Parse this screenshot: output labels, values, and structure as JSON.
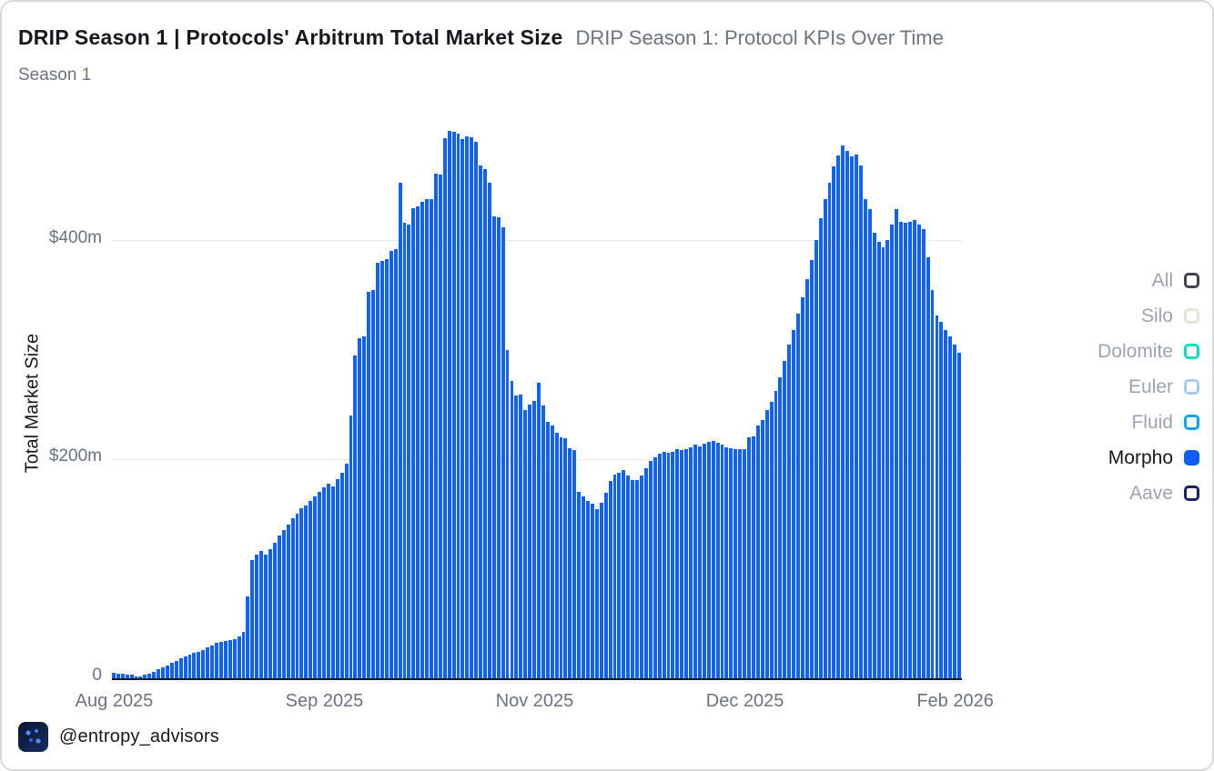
{
  "card": {
    "title_primary": "DRIP Season 1 | Protocols' Arbitrum Total Market Size",
    "title_secondary": "DRIP Season 1: Protocol KPIs Over Time",
    "subtitle": "Season 1",
    "watermark": "@entropy_advisors"
  },
  "legend": {
    "items": [
      {
        "label": "All",
        "color": "#3f4450",
        "filled": false,
        "active": false
      },
      {
        "label": "Silo",
        "color": "#e7e5cf",
        "filled": false,
        "active": false
      },
      {
        "label": "Dolomite",
        "color": "#00dfb5",
        "filled": false,
        "active": false
      },
      {
        "label": "Euler",
        "color": "#a5cdf2",
        "filled": false,
        "active": false
      },
      {
        "label": "Fluid",
        "color": "#0aa2f5",
        "filled": false,
        "active": false
      },
      {
        "label": "Morpho",
        "color": "#0d5ef4",
        "filled": true,
        "active": true
      },
      {
        "label": "Aave",
        "color": "#19216c",
        "filled": false,
        "active": false
      }
    ]
  },
  "chart_data": {
    "type": "bar",
    "title": "DRIP Season 1 | Protocols' Arbitrum Total Market Size",
    "series_name": "Morpho",
    "xlabel": "",
    "ylabel": "Total Market Size",
    "unit": "$m",
    "ylim": [
      0,
      520
    ],
    "grid": "horizontal-only",
    "legend_position": "right",
    "bar_color": "#1161f4",
    "yticks": [
      {
        "label": "$400m",
        "value": 400
      },
      {
        "label": "$200m",
        "value": 200
      },
      {
        "label": "0",
        "value": 0
      }
    ],
    "x_tick_labels": [
      "Aug 2025",
      "Sep 2025",
      "Nov 2025",
      "Dec 2025",
      "Feb 2026"
    ],
    "x_tick_indices": [
      0,
      47,
      94,
      141,
      188
    ],
    "x_range_note": "daily bars, Aug 2025 through early Feb 2026",
    "values": [
      5,
      4,
      4,
      3,
      3,
      2,
      2,
      3,
      4,
      6,
      8,
      10,
      12,
      14,
      16,
      18,
      20,
      22,
      23,
      24,
      26,
      28,
      30,
      32,
      33,
      34,
      35,
      36,
      38,
      42,
      75,
      108,
      113,
      116,
      113,
      118,
      124,
      130,
      135,
      140,
      146,
      150,
      155,
      158,
      162,
      166,
      170,
      174,
      178,
      175,
      182,
      188,
      196,
      240,
      295,
      310,
      312,
      353,
      354,
      379,
      381,
      383,
      390,
      392,
      452,
      416,
      414,
      429,
      431,
      435,
      437,
      437,
      461,
      460,
      493,
      500,
      499,
      497,
      492,
      495,
      494,
      490,
      468,
      465,
      452,
      422,
      421,
      412,
      300,
      271,
      258,
      259,
      245,
      250,
      253,
      270,
      249,
      234,
      231,
      224,
      220,
      219,
      210,
      208,
      170,
      166,
      162,
      159,
      154,
      160,
      169,
      180,
      186,
      188,
      190,
      185,
      181,
      181,
      185,
      192,
      198,
      202,
      205,
      207,
      206,
      207,
      209,
      208,
      209,
      211,
      213,
      212,
      214,
      216,
      217,
      215,
      213,
      211,
      210,
      209,
      209,
      209,
      220,
      221,
      231,
      236,
      245,
      252,
      262,
      275,
      290,
      305,
      318,
      333,
      348,
      364,
      382,
      400,
      420,
      437,
      452,
      467,
      477,
      486,
      481,
      476,
      478,
      468,
      437,
      428,
      407,
      398,
      393,
      400,
      414,
      428,
      417,
      416,
      417,
      418,
      414,
      410,
      384,
      354,
      331,
      325,
      318,
      312,
      305,
      297
    ]
  }
}
